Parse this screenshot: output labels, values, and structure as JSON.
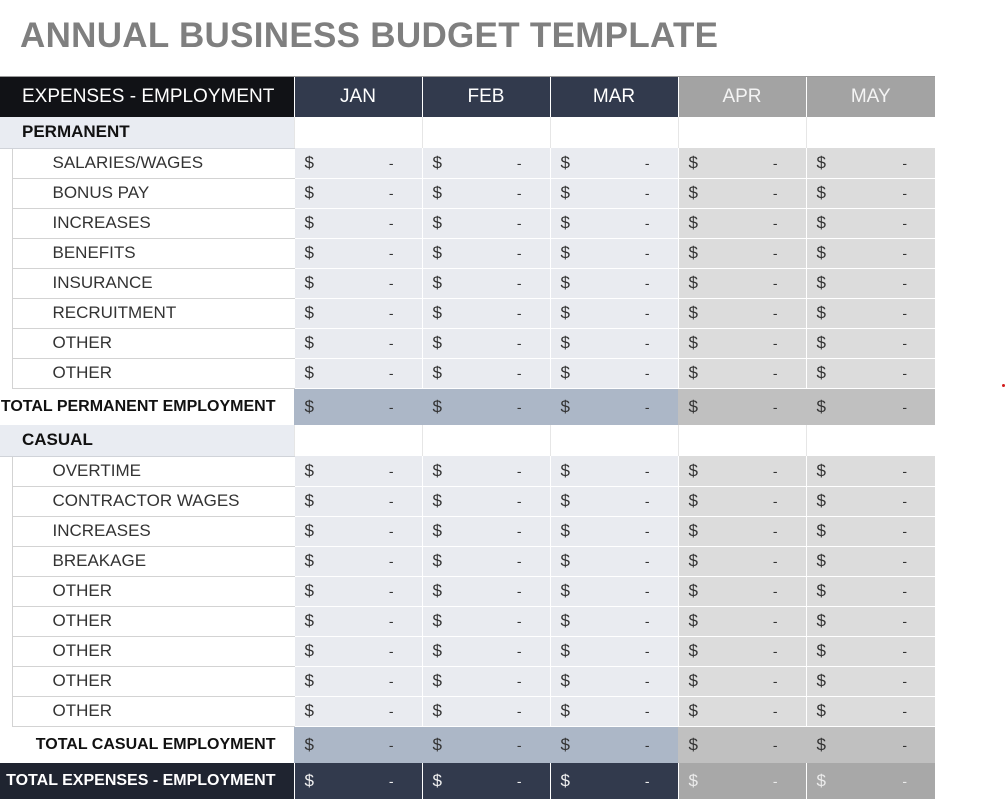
{
  "page": {
    "title": "ANNUAL BUSINESS BUDGET TEMPLATE"
  },
  "colors": {
    "header_label_bg": "#111216",
    "month_dark_bg": "#323a4d",
    "month_light_bg": "#a3a3a3",
    "cell_dark_bg": "#e9ebf0",
    "cell_light_bg": "#dcdcdc",
    "total_dark_bg": "#acb7c7",
    "total_light_bg": "#c0c0c0",
    "title_color": "#7f7f7f"
  },
  "table": {
    "header_label": "EXPENSES - EMPLOYMENT",
    "months": [
      "JAN",
      "FEB",
      "MAR",
      "APR",
      "MAY"
    ],
    "currency_symbol": "$",
    "empty_value": "-",
    "permanent": {
      "section_label": "PERMANENT",
      "items": [
        "SALARIES/WAGES",
        "BONUS PAY",
        "INCREASES",
        "BENEFITS",
        "INSURANCE",
        "RECRUITMENT",
        "OTHER",
        "OTHER"
      ],
      "total_label": "TOTAL PERMANENT EMPLOYMENT"
    },
    "casual": {
      "section_label": "CASUAL",
      "items": [
        "OVERTIME",
        "CONTRACTOR WAGES",
        "INCREASES",
        "BREAKAGE",
        "OTHER",
        "OTHER",
        "OTHER",
        "OTHER",
        "OTHER"
      ],
      "total_label": "TOTAL CASUAL EMPLOYMENT"
    },
    "grand_total_label": "TOTAL EXPENSES - EMPLOYMENT"
  }
}
